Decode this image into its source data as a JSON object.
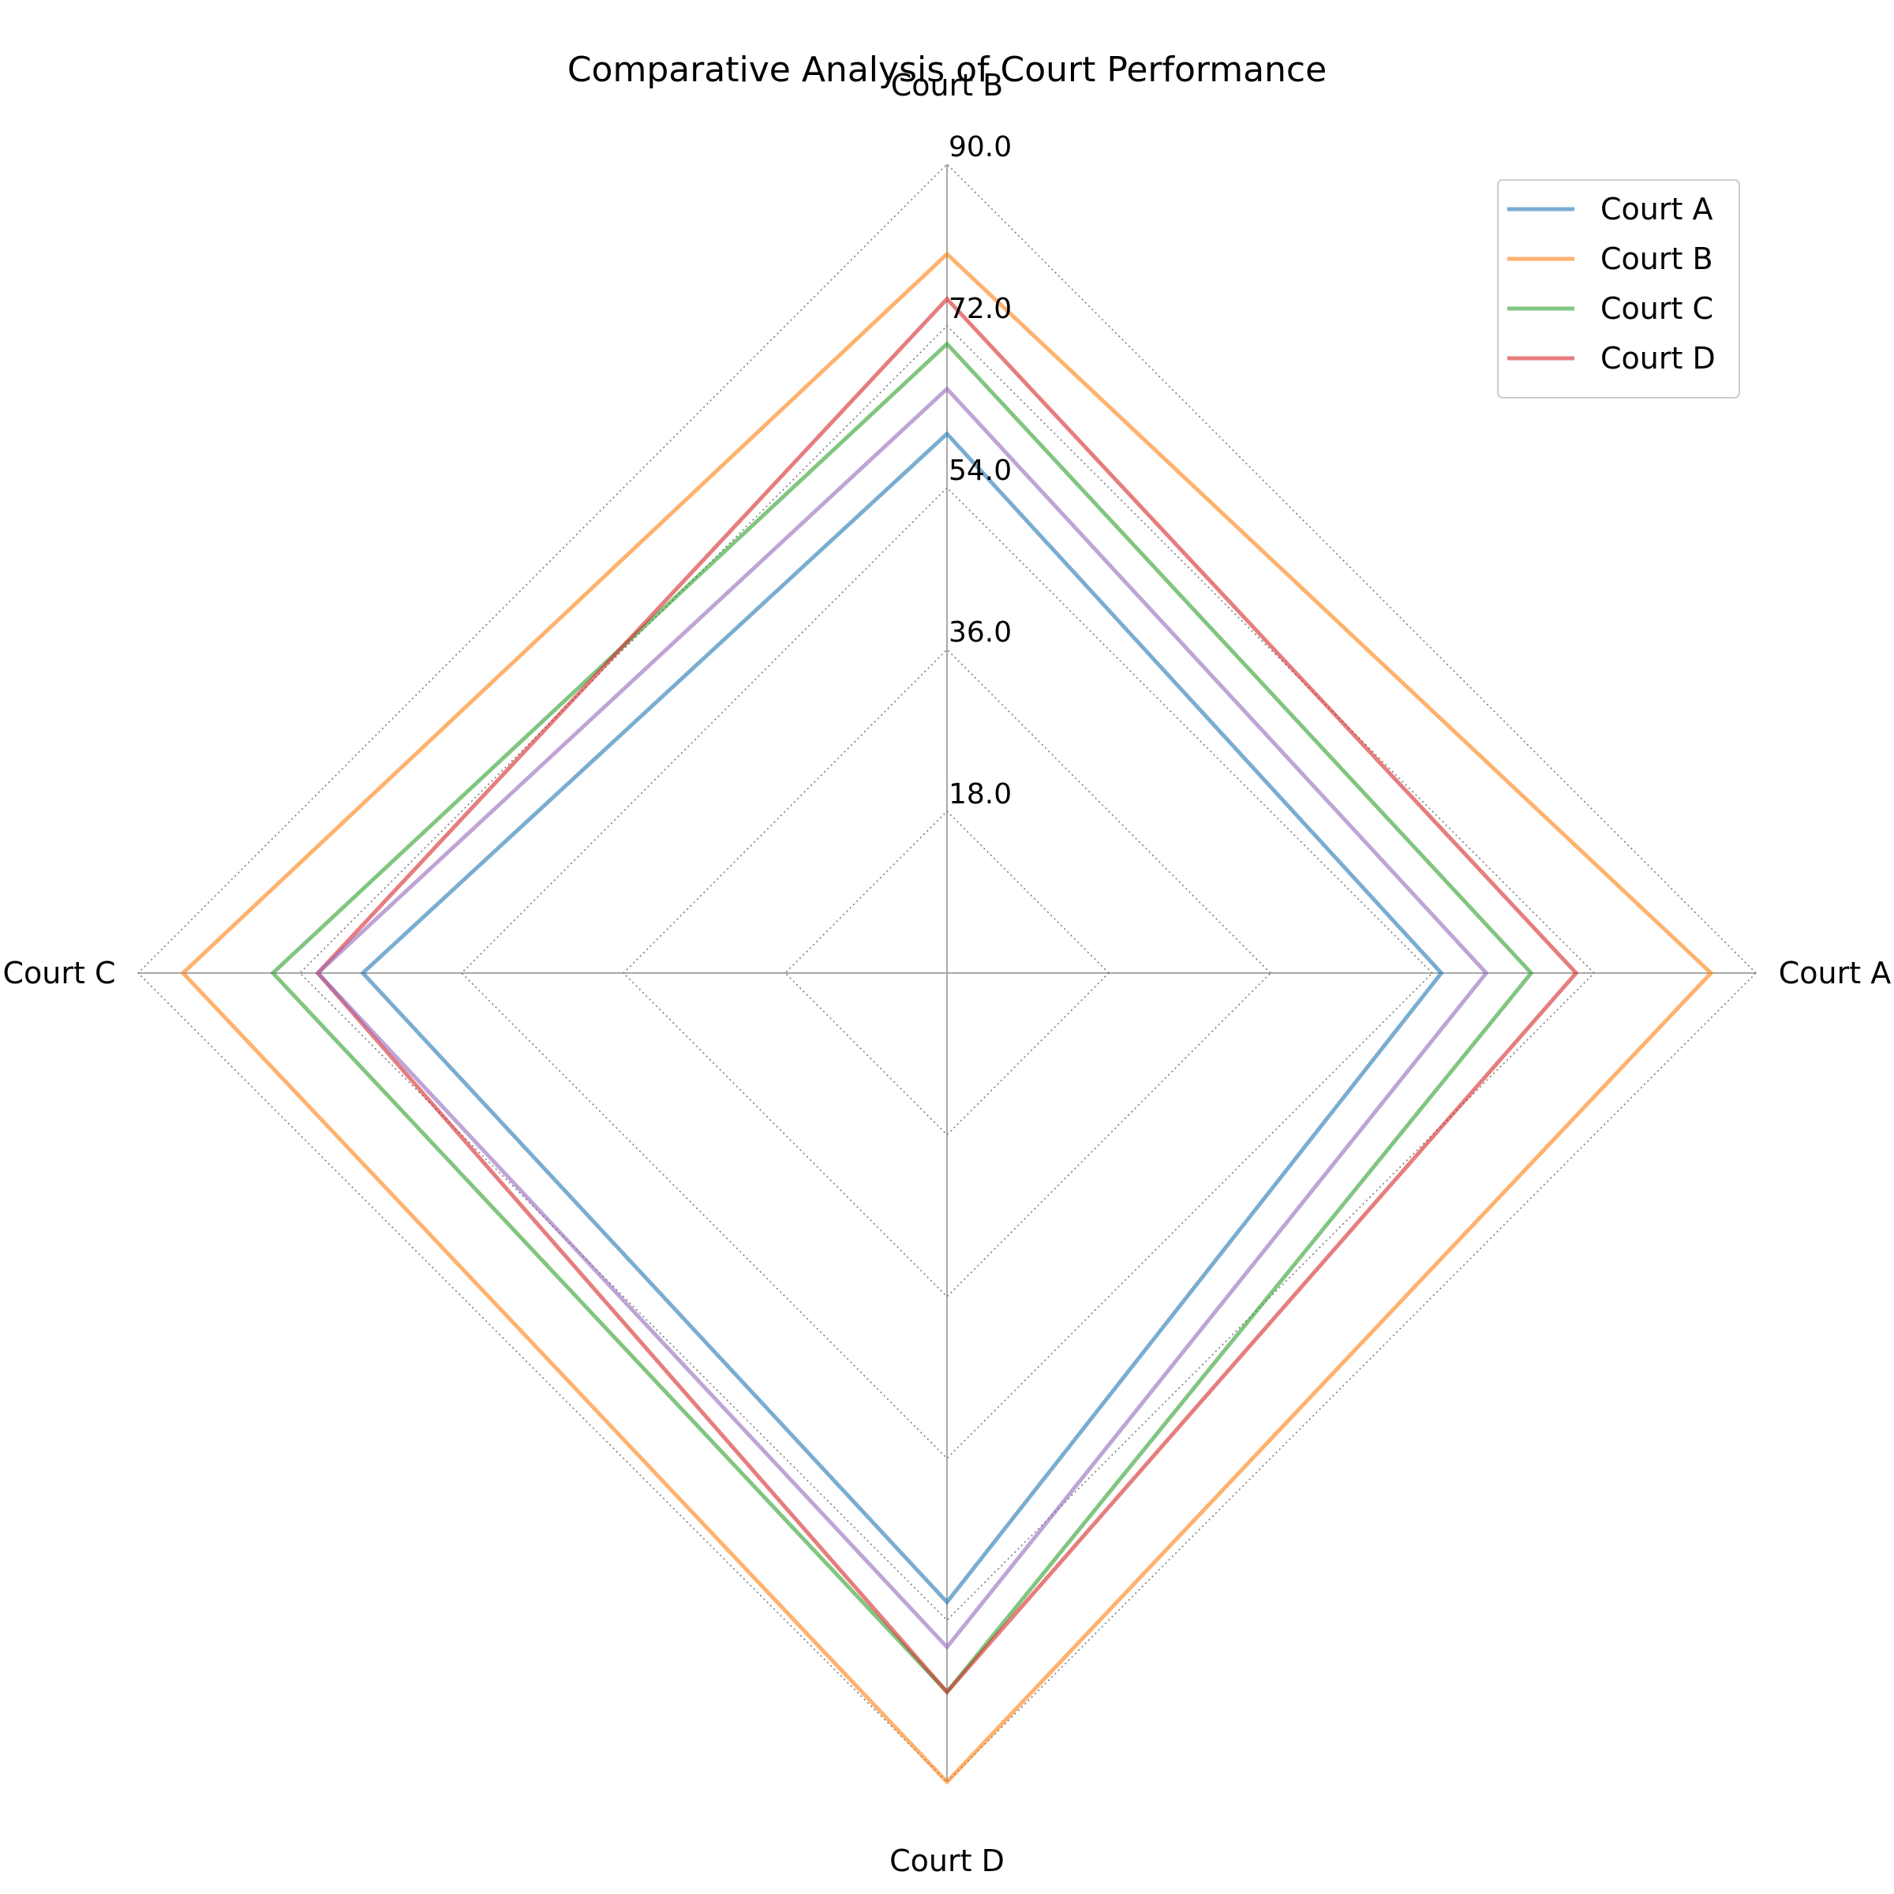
{
  "chart_data": {
    "type": "radar",
    "title": "Comparative Analysis of Court Performance",
    "axes": [
      "Court A",
      "Court B",
      "Court C",
      "Court D"
    ],
    "rlim": [
      0,
      90
    ],
    "rticks": [
      18,
      36,
      54,
      72,
      90
    ],
    "rtick_labels": [
      "18.0",
      "36.0",
      "54.0",
      "72.0",
      "90.0"
    ],
    "grid": true,
    "legend_position": "top-right",
    "series": [
      {
        "name": "Court A",
        "values": [
          55,
          60,
          65,
          70
        ],
        "color": "#1f77b4"
      },
      {
        "name": "Court B",
        "values": [
          85,
          80,
          85,
          90
        ],
        "color": "#ff7f0e"
      },
      {
        "name": "Court C",
        "values": [
          65,
          70,
          75,
          80
        ],
        "color": "#2ca02c"
      },
      {
        "name": "Court D",
        "values": [
          70,
          75,
          70,
          80
        ],
        "color": "#d62728"
      },
      {
        "values": [
          60,
          65,
          70,
          75
        ],
        "color": "#9467bd"
      }
    ]
  }
}
